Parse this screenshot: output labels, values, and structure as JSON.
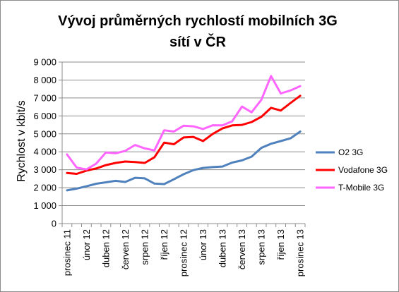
{
  "chart_data": {
    "type": "line",
    "title_lines": [
      "Vývoj průměrných rychlostí mobilních 3G",
      "sítí v ČR"
    ],
    "ylabel": "Rychlost v kbit/s",
    "ylim": [
      0,
      9000
    ],
    "yticks": [
      0,
      1000,
      2000,
      3000,
      4000,
      5000,
      6000,
      7000,
      8000,
      9000
    ],
    "ytick_labels": [
      "0",
      "1 000",
      "2 000",
      "3 000",
      "4 000",
      "5 000",
      "6 000",
      "7 000",
      "8 000",
      "9 000"
    ],
    "grid": true,
    "legend_position": "right",
    "xtick_labels": [
      {
        "index": 0,
        "label": "prosinec 11"
      },
      {
        "index": 2,
        "label": "únor 12"
      },
      {
        "index": 4,
        "label": "duben 12"
      },
      {
        "index": 6,
        "label": "červen 12"
      },
      {
        "index": 8,
        "label": "srpen 12"
      },
      {
        "index": 10,
        "label": "říjen 12"
      },
      {
        "index": 12,
        "label": "prosinec 12"
      },
      {
        "index": 14,
        "label": "únor 13"
      },
      {
        "index": 16,
        "label": "duben 13"
      },
      {
        "index": 18,
        "label": "červen 13"
      },
      {
        "index": 20,
        "label": "srpen 13"
      },
      {
        "index": 22,
        "label": "říjen 13"
      },
      {
        "index": 24,
        "label": "prosinec 13"
      }
    ],
    "series": [
      {
        "name": "O2 3G",
        "color": "#4f81bd",
        "values": [
          1850,
          1950,
          2080,
          2220,
          2300,
          2380,
          2320,
          2550,
          2520,
          2230,
          2200,
          2470,
          2750,
          2980,
          3100,
          3150,
          3180,
          3400,
          3520,
          3730,
          4220,
          4450,
          4600,
          4750,
          5130
        ]
      },
      {
        "name": "Vodafone 3G",
        "color": "#ff0000",
        "values": [
          2820,
          2770,
          2950,
          3070,
          3260,
          3380,
          3460,
          3430,
          3380,
          3700,
          4510,
          4420,
          4800,
          4830,
          4600,
          5000,
          5300,
          5470,
          5500,
          5660,
          5950,
          6450,
          6300,
          6720,
          7120
        ]
      },
      {
        "name": "T-Mobile 3G",
        "color": "#ff66ff",
        "values": [
          3850,
          3120,
          3020,
          3340,
          3960,
          3920,
          4050,
          4380,
          4190,
          4080,
          5200,
          5130,
          5450,
          5420,
          5270,
          5480,
          5470,
          5700,
          6520,
          6200,
          6900,
          8220,
          7250,
          7420,
          7660
        ]
      }
    ]
  }
}
